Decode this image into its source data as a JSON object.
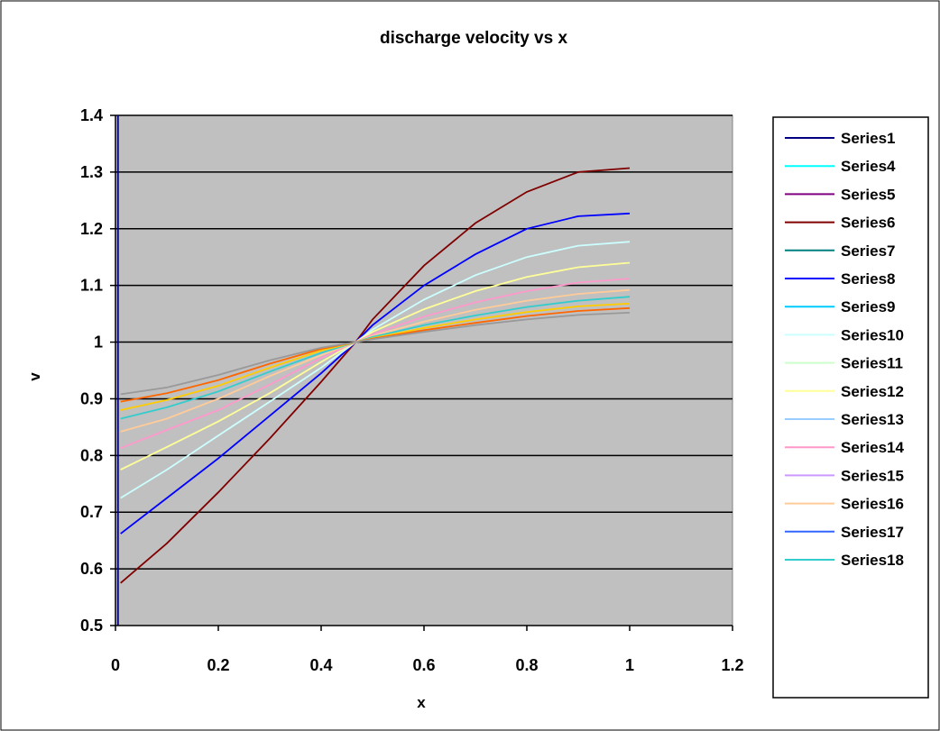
{
  "chart_data": {
    "type": "line",
    "title": "discharge velocity vs x",
    "xlabel": "x",
    "ylabel": "v",
    "xlim": [
      0,
      1.2
    ],
    "ylim": [
      0.5,
      1.4
    ],
    "xticks": [
      "0",
      "0.2",
      "0.4",
      "0.6",
      "0.8",
      "1",
      "1.2"
    ],
    "yticks": [
      "0.5",
      "0.6",
      "0.7",
      "0.8",
      "0.9",
      "1",
      "1.1",
      "1.2",
      "1.3",
      "1.4"
    ],
    "grid": "horizontal",
    "legend_placement": "right",
    "plot_background": "#c0c0c0",
    "x": [
      0.01,
      0.1,
      0.2,
      0.3,
      0.4,
      0.467,
      0.5,
      0.6,
      0.7,
      0.8,
      0.9,
      1.0
    ],
    "series": [
      {
        "name": "Series1",
        "color": "#000080",
        "x": [
          0.005,
          0.005
        ],
        "values": [
          0.5,
          1.4
        ]
      },
      {
        "name": "Series4",
        "color": "#00ffff",
        "values": null
      },
      {
        "name": "Series5",
        "color": "#800080",
        "values": null
      },
      {
        "name": "Series6",
        "color": "#800000",
        "values": [
          0.575,
          0.645,
          0.735,
          0.83,
          0.93,
          1.0,
          1.04,
          1.135,
          1.21,
          1.265,
          1.3,
          1.307
        ]
      },
      {
        "name": "Series7",
        "color": "#008080",
        "values": null
      },
      {
        "name": "Series8",
        "color": "#0000ff",
        "values": [
          0.662,
          0.725,
          0.795,
          0.87,
          0.945,
          1.0,
          1.03,
          1.1,
          1.155,
          1.2,
          1.222,
          1.227
        ]
      },
      {
        "name": "Series9",
        "color": "#00ccff",
        "values": null
      },
      {
        "name": "Series10",
        "color": "#ccffff",
        "values": [
          0.725,
          0.775,
          0.835,
          0.895,
          0.955,
          1.0,
          1.022,
          1.075,
          1.118,
          1.15,
          1.17,
          1.177
        ]
      },
      {
        "name": "Series11",
        "color": "#ccffcc",
        "values": null
      },
      {
        "name": "Series12",
        "color": "#ffff99",
        "values": [
          0.775,
          0.815,
          0.86,
          0.91,
          0.965,
          1.0,
          1.018,
          1.058,
          1.09,
          1.115,
          1.132,
          1.14
        ]
      },
      {
        "name": "Series13",
        "color": "#99ccff",
        "values": null
      },
      {
        "name": "Series14",
        "color": "#ff99cc",
        "values": [
          0.813,
          0.845,
          0.88,
          0.925,
          0.972,
          1.0,
          1.014,
          1.045,
          1.07,
          1.09,
          1.105,
          1.112
        ]
      },
      {
        "name": "Series15",
        "color": "#cc99ff",
        "values": null
      },
      {
        "name": "Series16",
        "color": "#ffcc99",
        "values": [
          0.842,
          0.865,
          0.9,
          0.94,
          0.977,
          1.0,
          1.011,
          1.036,
          1.057,
          1.073,
          1.085,
          1.092
        ]
      },
      {
        "name": "Series17",
        "color": "#3366ff",
        "values": null
      },
      {
        "name": "Series18",
        "color": "#33cccc",
        "values": [
          0.865,
          0.885,
          0.913,
          0.948,
          0.981,
          1.0,
          1.009,
          1.03,
          1.047,
          1.062,
          1.073,
          1.08
        ]
      },
      {
        "name": "",
        "color": "#ffcc00",
        "values": [
          0.88,
          0.898,
          0.923,
          0.955,
          0.985,
          1.0,
          1.007,
          1.025,
          1.04,
          1.053,
          1.063,
          1.068
        ]
      },
      {
        "name": "",
        "color": "#ff6600",
        "values": [
          0.895,
          0.91,
          0.933,
          0.962,
          0.988,
          1.0,
          1.006,
          1.021,
          1.034,
          1.046,
          1.055,
          1.06
        ]
      },
      {
        "name": "",
        "color": "#999999",
        "values": [
          0.908,
          0.92,
          0.942,
          0.968,
          0.99,
          1.0,
          1.005,
          1.018,
          1.03,
          1.04,
          1.048,
          1.052
        ]
      }
    ]
  }
}
